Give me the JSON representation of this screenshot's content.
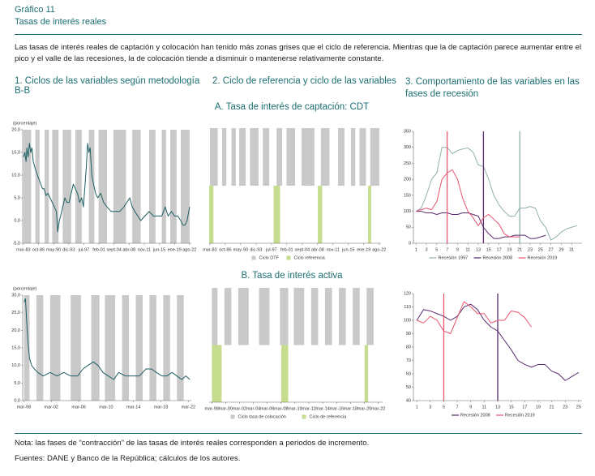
{
  "header": {
    "label": "Gráfico 11",
    "title": "Tasas de interés reales",
    "description": "Las tasas de interés reales de captación y colocación han tenido más zonas grises que el ciclo de referencia. Mientras que la de captación parece aumentar entre el pico y el valle de las recesiones, la de colocación tiende a disminuir o mantenerse relativamente constante."
  },
  "columns": [
    "1. Ciclos de las variables según metodología B-B",
    "2. Ciclo de referencia y ciclo de las variables",
    "3. Comportamiento de las variables en las fases de recesión"
  ],
  "sections": [
    "A. Tasa de interés de captación: CDT",
    "B. Tasa de interés activa"
  ],
  "notes": [
    "Nota: las fases de “contracción” de las tasas de interés reales corresponden a periodos de incremento.",
    "Fuentes: DANE y Banco de la República; cálculos de los autores."
  ],
  "chart_data": [
    {
      "type": "line",
      "y_label": "(porcentaje)",
      "xlim": [
        1983,
        2023
      ],
      "xticks": [
        {
          "value": 1983.17,
          "label": "mar-83"
        },
        {
          "value": 1986.75,
          "label": "oct-86"
        },
        {
          "value": 1990.33,
          "label": "may-90"
        },
        {
          "value": 1993.92,
          "label": "dic-93"
        },
        {
          "value": 1997.5,
          "label": "jul-97"
        },
        {
          "value": 2001.08,
          "label": "feb-01"
        },
        {
          "value": 2004.67,
          "label": "sept-04"
        },
        {
          "value": 2008.25,
          "label": "abr-08"
        },
        {
          "value": 2011.83,
          "label": "nov-11"
        },
        {
          "value": 2015.42,
          "label": "jun-15"
        },
        {
          "value": 2019.0,
          "label": "ene-19"
        },
        {
          "value": 2022.58,
          "label": "ago-22"
        }
      ],
      "ylim": [
        -5,
        20
      ],
      "yticks": [
        {
          "value": -5,
          "label": "-5,0"
        },
        {
          "value": 0,
          "label": "0,0"
        },
        {
          "value": 5,
          "label": "5,0"
        },
        {
          "value": 10,
          "label": "10,0"
        },
        {
          "value": 15,
          "label": "15,0"
        },
        {
          "value": 20,
          "label": "20,0"
        }
      ],
      "shading": {
        "color": "#c9c9c9",
        "intervals": [
          [
            1983.2,
            1985.0
          ],
          [
            1986.0,
            1987.0
          ],
          [
            1988.2,
            1989.2
          ],
          [
            1990.0,
            1991.5
          ],
          [
            1992.5,
            1994.5
          ],
          [
            1995.5,
            1997.0
          ],
          [
            1998.7,
            2000.0
          ],
          [
            2001.0,
            2003.0
          ],
          [
            2004.5,
            2007.5
          ],
          [
            2009.0,
            2011.0
          ],
          [
            2013.0,
            2014.5
          ],
          [
            2016.0,
            2017.0
          ],
          [
            2018.0,
            2019.5
          ],
          [
            2020.5,
            2022.6
          ]
        ]
      },
      "x": [
        1983.2,
        1983.5,
        1983.8,
        1984.0,
        1984.3,
        1984.6,
        1984.9,
        1985.2,
        1985.5,
        1985.8,
        1986.1,
        1986.5,
        1986.9,
        1987.3,
        1987.7,
        1988.1,
        1988.5,
        1989.0,
        1989.5,
        1990.0,
        1990.5,
        1991.0,
        1991.3,
        1991.7,
        1992.0,
        1992.5,
        1993.0,
        1993.5,
        1994.0,
        1994.5,
        1995.0,
        1995.5,
        1996.0,
        1996.5,
        1997.0,
        1997.4,
        1997.8,
        1998.1,
        1998.4,
        1998.7,
        1999.0,
        1999.4,
        1999.8,
        2000.3,
        2000.8,
        2001.5,
        2002.2,
        2003.0,
        2004.0,
        2005.0,
        2006.0,
        2007.0,
        2007.7,
        2008.4,
        2009.0,
        2009.6,
        2010.3,
        2011.0,
        2012.0,
        2013.0,
        2014.0,
        2015.0,
        2016.0,
        2016.8,
        2017.5,
        2018.3,
        2019.0,
        2019.8,
        2020.5,
        2021.0,
        2021.5,
        2022.0,
        2022.6
      ],
      "series": [
        {
          "color": "#1d5f63",
          "values": [
            14,
            15,
            13,
            16,
            14,
            17,
            15,
            16,
            13,
            12,
            11,
            10,
            9,
            8,
            7,
            7,
            5.5,
            6,
            5,
            4,
            3,
            2,
            -2.5,
            0,
            1,
            3,
            5,
            4,
            4,
            6,
            8,
            7,
            6,
            4,
            5,
            3,
            8,
            12,
            17,
            15,
            16,
            10,
            8,
            6,
            5,
            6,
            4,
            3,
            2,
            2,
            2,
            3,
            4,
            5,
            3,
            2,
            1,
            0,
            1,
            2,
            1,
            1,
            1,
            3,
            1,
            2,
            1,
            1,
            0,
            -1,
            -1,
            0,
            3
          ]
        }
      ]
    },
    {
      "type": "band",
      "xlim": [
        1983,
        2023
      ],
      "xticks": [
        {
          "value": 1983.17,
          "label": "mar-83"
        },
        {
          "value": 1986.75,
          "label": "oct-86"
        },
        {
          "value": 1990.33,
          "label": "may-90"
        },
        {
          "value": 1993.92,
          "label": "dic-93"
        },
        {
          "value": 1997.5,
          "label": "jul-97"
        },
        {
          "value": 2001.08,
          "label": "feb-01"
        },
        {
          "value": 2004.67,
          "label": "sept-04"
        },
        {
          "value": 2008.25,
          "label": "abr-08"
        },
        {
          "value": 2011.83,
          "label": "nov-11"
        },
        {
          "value": 2015.42,
          "label": "jun-15"
        },
        {
          "value": 2019.0,
          "label": "ene-19"
        },
        {
          "value": 2022.58,
          "label": "ago-22"
        }
      ],
      "series": [
        {
          "name": "Ciclo DTF",
          "color": "#c9c9c9",
          "intervals": [
            [
              1983.2,
              1985.0
            ],
            [
              1986.0,
              1987.0
            ],
            [
              1988.2,
              1989.2
            ],
            [
              1990.0,
              1991.5
            ],
            [
              1992.5,
              1994.5
            ],
            [
              1995.5,
              1997.0
            ],
            [
              1998.7,
              2000.0
            ],
            [
              2001.0,
              2003.0
            ],
            [
              2004.5,
              2007.5
            ],
            [
              2009.0,
              2011.0
            ],
            [
              2013.0,
              2014.5
            ],
            [
              2016.0,
              2017.0
            ],
            [
              2018.0,
              2019.5
            ],
            [
              2020.5,
              2022.6
            ]
          ]
        },
        {
          "name": "Ciclo referencia",
          "color": "#c6dc8e",
          "intervals": [
            [
              1983.0,
              1984.0
            ],
            [
              1998.0,
              1999.5
            ],
            [
              2008.3,
              2009.3
            ],
            [
              2020.0,
              2020.7
            ]
          ]
        }
      ]
    },
    {
      "type": "line",
      "xlim": [
        0.5,
        33
      ],
      "xticks": [
        1,
        3,
        5,
        7,
        9,
        11,
        13,
        15,
        17,
        19,
        21,
        23,
        25,
        27,
        29,
        31
      ],
      "ylim": [
        0,
        350
      ],
      "yticks": [
        0,
        50,
        100,
        150,
        200,
        250,
        300,
        350
      ],
      "x": [
        1,
        2,
        3,
        4,
        5,
        6,
        7,
        8,
        9,
        10,
        11,
        12,
        13,
        14,
        15,
        16,
        17,
        18,
        19,
        20,
        21,
        22,
        23,
        24,
        25,
        26,
        27,
        28,
        29,
        30,
        31,
        32
      ],
      "series": [
        {
          "name": "Recesión 1997",
          "color": "#8fb0ad",
          "peak": 21,
          "values": [
            100,
            110,
            150,
            200,
            220,
            300,
            300,
            280,
            290,
            295,
            298,
            285,
            245,
            240,
            200,
            150,
            120,
            100,
            85,
            85,
            110,
            110,
            115,
            110,
            70,
            50,
            10,
            20,
            35,
            45,
            50,
            55
          ]
        },
        {
          "name": "Recesión 2008",
          "color": "#5b2a6e",
          "peak": 14,
          "values": [
            100,
            100,
            95,
            95,
            90,
            95,
            95,
            90,
            90,
            95,
            95,
            90,
            85,
            50,
            30,
            15,
            15,
            20,
            20,
            25,
            25,
            25,
            15,
            15,
            20,
            25,
            null,
            null,
            null,
            null,
            null,
            null
          ]
        },
        {
          "name": "Recesión 2019",
          "color": "#e8556f",
          "peak": 7,
          "values": [
            100,
            105,
            110,
            105,
            130,
            200,
            220,
            230,
            200,
            140,
            100,
            80,
            55,
            80,
            90,
            75,
            60,
            30,
            20,
            20,
            20,
            null,
            null,
            null,
            null,
            null,
            null,
            null,
            null,
            null,
            null,
            null
          ]
        }
      ]
    },
    {
      "type": "line",
      "y_label": "(porcentaje)",
      "xlim": [
        1998,
        2022.6
      ],
      "xticks": [
        {
          "value": 1998.17,
          "label": "mar-98"
        },
        {
          "value": 2002.17,
          "label": "mar-02"
        },
        {
          "value": 2006.17,
          "label": "mar-06"
        },
        {
          "value": 2010.17,
          "label": "mar-10"
        },
        {
          "value": 2014.17,
          "label": "mar-14"
        },
        {
          "value": 2018.17,
          "label": "mar-18"
        },
        {
          "value": 2022.17,
          "label": "mar-22"
        }
      ],
      "ylim": [
        0,
        30
      ],
      "yticks": [
        {
          "value": 0,
          "label": "0,0"
        },
        {
          "value": 5,
          "label": "5,0"
        },
        {
          "value": 10,
          "label": "10,0"
        },
        {
          "value": 15,
          "label": "15,0"
        },
        {
          "value": 20,
          "label": "20,0"
        },
        {
          "value": 25,
          "label": "25,0"
        },
        {
          "value": 30,
          "label": "30,0"
        }
      ],
      "shading": {
        "color": "#c9c9c9",
        "intervals": [
          [
            1998.2,
            1999.0
          ],
          [
            2000.0,
            2001.0
          ],
          [
            2002.0,
            2003.5
          ],
          [
            2005.0,
            2006.5
          ],
          [
            2008.0,
            2009.2
          ],
          [
            2010.0,
            2011.5
          ],
          [
            2012.5,
            2013.5
          ],
          [
            2014.5,
            2015.5
          ],
          [
            2016.5,
            2017.5
          ],
          [
            2018.5,
            2019.5
          ],
          [
            2020.5,
            2021.5
          ]
        ]
      },
      "x": [
        1998.2,
        1998.4,
        1998.6,
        1998.8,
        1999.0,
        1999.3,
        1999.7,
        2000.2,
        2001.0,
        2002.0,
        2003.0,
        2004.0,
        2005.0,
        2006.0,
        2006.8,
        2007.5,
        2008.3,
        2009.0,
        2009.7,
        2010.5,
        2011.3,
        2012.0,
        2013.0,
        2014.0,
        2015.0,
        2016.0,
        2016.8,
        2017.5,
        2018.3,
        2019.0,
        2019.8,
        2020.5,
        2021.2,
        2021.8,
        2022.4
      ],
      "series": [
        {
          "color": "#1d5f63",
          "values": [
            28,
            29,
            22,
            16,
            12,
            10,
            9,
            8,
            7,
            8,
            7,
            8,
            7,
            7,
            9,
            10,
            11,
            10,
            8,
            7,
            6,
            8,
            7,
            7,
            7,
            9,
            9,
            8,
            7,
            7,
            8,
            7,
            6,
            7,
            6
          ]
        }
      ]
    },
    {
      "type": "band",
      "xlim": [
        1997.8,
        2022.8
      ],
      "xticks": [
        {
          "value": 1998.17,
          "label": "mar-98"
        },
        {
          "value": 2000.17,
          "label": "mar-00"
        },
        {
          "value": 2002.17,
          "label": "mar-02"
        },
        {
          "value": 2004.17,
          "label": "mar-04"
        },
        {
          "value": 2006.17,
          "label": "mar-06"
        },
        {
          "value": 2008.17,
          "label": "mar-08"
        },
        {
          "value": 2010.17,
          "label": "mar-10"
        },
        {
          "value": 2012.17,
          "label": "mar-12"
        },
        {
          "value": 2014.17,
          "label": "mar-14"
        },
        {
          "value": 2016.17,
          "label": "mar-16"
        },
        {
          "value": 2018.17,
          "label": "mar-18"
        },
        {
          "value": 2020.17,
          "label": "mar-20"
        },
        {
          "value": 2022.17,
          "label": "mar-22"
        }
      ],
      "series": [
        {
          "name": "Ciclo tasa de colocación",
          "color": "#c9c9c9",
          "intervals": [
            [
              1998.2,
              1999.0
            ],
            [
              2000.0,
              2001.0
            ],
            [
              2002.0,
              2003.5
            ],
            [
              2005.0,
              2006.5
            ],
            [
              2008.0,
              2009.2
            ],
            [
              2010.0,
              2011.5
            ],
            [
              2012.5,
              2013.5
            ],
            [
              2014.5,
              2015.5
            ],
            [
              2016.5,
              2017.5
            ],
            [
              2018.5,
              2019.5
            ],
            [
              2020.5,
              2021.5
            ]
          ]
        },
        {
          "name": "Ciclo de referencia",
          "color": "#c6dc8e",
          "intervals": [
            [
              1998.2,
              1999.6
            ],
            [
              2008.2,
              2009.2
            ],
            [
              2020.2,
              2020.7
            ]
          ]
        }
      ]
    },
    {
      "type": "line",
      "xlim": [
        0.5,
        25.5
      ],
      "xticks": [
        1,
        3,
        5,
        7,
        9,
        11,
        13,
        15,
        17,
        19,
        21,
        23,
        25
      ],
      "ylim": [
        40,
        120
      ],
      "yticks": [
        40,
        50,
        60,
        70,
        80,
        90,
        100,
        110,
        120
      ],
      "x": [
        1,
        2,
        3,
        4,
        5,
        6,
        7,
        8,
        9,
        10,
        11,
        12,
        13,
        14,
        15,
        16,
        17,
        18,
        19,
        20,
        21,
        22,
        23,
        24,
        25
      ],
      "series": [
        {
          "name": "Recesión 2008",
          "color": "#5b2a6e",
          "peak": 13,
          "values": [
            100,
            108,
            107,
            105,
            103,
            100,
            103,
            110,
            112,
            108,
            100,
            95,
            92,
            85,
            78,
            70,
            67,
            65,
            67,
            67,
            62,
            60,
            55,
            58,
            61
          ]
        },
        {
          "name": "Recesión 2019",
          "color": "#e8556f",
          "peak": 5,
          "values": [
            100,
            98,
            103,
            100,
            92,
            90,
            102,
            114,
            110,
            105,
            105,
            98,
            100,
            100,
            107,
            106,
            102,
            95,
            null,
            null,
            null,
            null,
            null,
            null,
            null
          ]
        }
      ]
    }
  ]
}
